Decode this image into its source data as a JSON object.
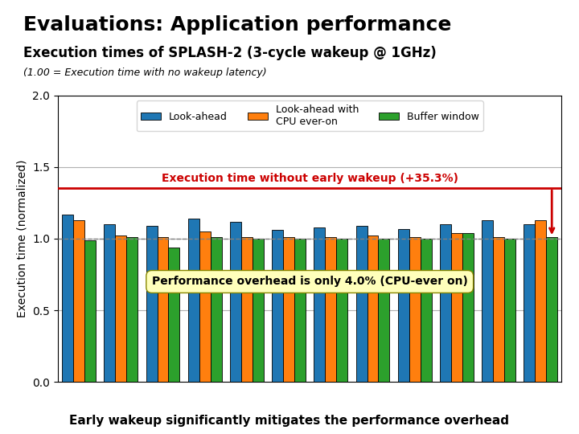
{
  "chart_data": {
    "type": "bar",
    "title": "Evaluations: Application performance",
    "subtitle": "Execution times of SPLASH-2 (3-cycle wakeup @ 1GHz)",
    "y_label": "Execution time (normalized)",
    "categories": [
      null,
      null,
      null,
      null,
      null,
      null,
      null,
      null,
      null,
      null,
      null,
      null
    ],
    "series": [
      {
        "name": "Look-ahead",
        "values": [
          1.17,
          1.1,
          1.09,
          1.14,
          1.12,
          1.06,
          1.08,
          1.09,
          1.07,
          1.1,
          1.13,
          1.1
        ]
      },
      {
        "name": "Look-ahead with\nCPU ever-on",
        "values": [
          1.13,
          1.02,
          1.01,
          1.05,
          1.01,
          1.01,
          1.01,
          1.02,
          1.01,
          1.04,
          1.01,
          1.13
        ]
      },
      {
        "name": "Buffer window",
        "values": [
          0.99,
          1.01,
          0.94,
          1.01,
          1.0,
          1.0,
          1.0,
          1.0,
          1.0,
          1.04,
          1.0,
          1.01
        ]
      }
    ],
    "reference_lines": [
      {
        "value": 1,
        "line_style": "dashed"
      },
      {
        "value": 1.353,
        "label": "Execution time without early wakeup (+35.3%)",
        "color": "#cc0000"
      }
    ],
    "annotations": [
      {
        "text": "(1.00 = Execution time with no wakeup latency)"
      },
      {
        "text": "Performance overhead is only 4.0% (CPU-ever on)"
      },
      {
        "text": "Early wakeup significantly mitigates the performance overhead"
      }
    ],
    "ylim": [
      0,
      2.0
    ],
    "yticks": [
      {
        "value": 0,
        "label": "0.0"
      },
      {
        "value": 0.5,
        "label": "0.5"
      },
      {
        "value": 1,
        "label": "1.0"
      },
      {
        "value": 1.5,
        "label": "1.5"
      },
      {
        "value": 2,
        "label": "2.0"
      }
    ],
    "grid": true,
    "legend": "upper center"
  }
}
